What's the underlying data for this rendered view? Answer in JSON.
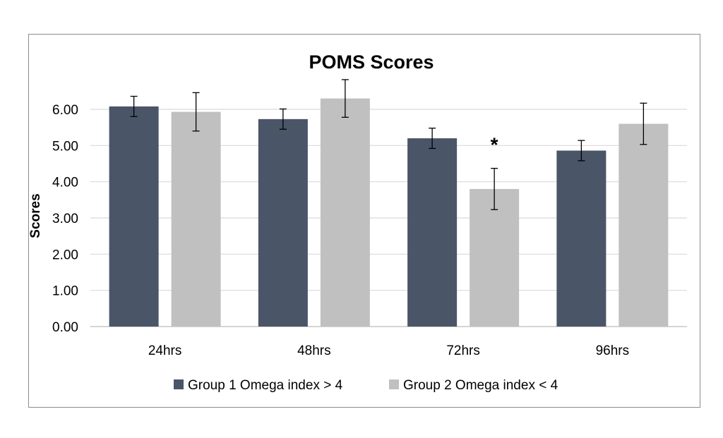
{
  "chart_data": {
    "type": "bar",
    "title": "POMS Scores",
    "ylabel": "Scores",
    "xlabel": "",
    "categories": [
      "24hrs",
      "48hrs",
      "72hrs",
      "96hrs"
    ],
    "ylim": [
      0,
      6.0
    ],
    "yticks": [
      "0.00",
      "1.00",
      "2.00",
      "3.00",
      "4.00",
      "5.00",
      "6.00"
    ],
    "grid": true,
    "legend_position": "bottom",
    "series": [
      {
        "name": "Group 1 Omega index > 4",
        "color": "#4a5568",
        "values": [
          6.08,
          5.73,
          5.2,
          4.86
        ],
        "error": [
          0.28,
          0.28,
          0.28,
          0.28
        ]
      },
      {
        "name": "Group 2 Omega index < 4",
        "color": "#c0c0c0",
        "values": [
          5.93,
          6.3,
          3.8,
          5.6
        ],
        "error": [
          0.53,
          0.52,
          0.57,
          0.57
        ]
      }
    ],
    "annotations": [
      {
        "text": "*",
        "category": "72hrs",
        "series": 1
      }
    ]
  }
}
